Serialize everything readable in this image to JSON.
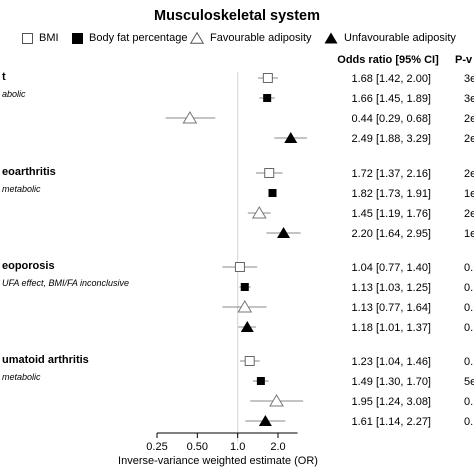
{
  "chart_data": {
    "type": "forest",
    "title": "Musculoskeletal system",
    "legend": [
      "BMI",
      "Body fat percentage",
      "Favourable adiposity",
      "Unfavourable adiposity"
    ],
    "legend_placement": "top",
    "columns": {
      "or_header": "Odds ratio [95% CI]",
      "p_header": "P-v"
    },
    "xlabel": "Inverse-variance weighted estimate (OR)",
    "xscale": "log",
    "xticks": [
      "0.25",
      "0.50",
      "1.0",
      "2.0"
    ],
    "xtick_values": [
      0.25,
      0.5,
      1.0,
      2.0
    ],
    "xlim": [
      0.25,
      2.8
    ],
    "reference_line": 1.0,
    "groups": [
      {
        "label": "t",
        "note": "abolic",
        "rows": [
          {
            "series": "BMI",
            "or": 1.68,
            "lo": 1.42,
            "hi": 2.0,
            "text": "1.68 [1.42, 2.00]",
            "p": "3e"
          },
          {
            "series": "Body fat percentage",
            "or": 1.66,
            "lo": 1.45,
            "hi": 1.89,
            "text": "1.66 [1.45, 1.89]",
            "p": "3e"
          },
          {
            "series": "Favourable adiposity",
            "or": 0.44,
            "lo": 0.29,
            "hi": 0.68,
            "text": "0.44 [0.29, 0.68]",
            "p": "2e"
          },
          {
            "series": "Unfavourable adiposity",
            "or": 2.49,
            "lo": 1.88,
            "hi": 3.29,
            "text": "2.49 [1.88, 3.29]",
            "p": "2e"
          }
        ]
      },
      {
        "label": "eoarthritis",
        "note": "metabolic",
        "rows": [
          {
            "series": "BMI",
            "or": 1.72,
            "lo": 1.37,
            "hi": 2.16,
            "text": "1.72 [1.37, 2.16]",
            "p": "2e"
          },
          {
            "series": "Body fat percentage",
            "or": 1.82,
            "lo": 1.73,
            "hi": 1.91,
            "text": "1.82 [1.73, 1.91]",
            "p": "1e-"
          },
          {
            "series": "Favourable adiposity",
            "or": 1.45,
            "lo": 1.19,
            "hi": 1.76,
            "text": "1.45 [1.19, 1.76]",
            "p": "2e"
          },
          {
            "series": "Unfavourable adiposity",
            "or": 2.2,
            "lo": 1.64,
            "hi": 2.95,
            "text": "2.20 [1.64, 2.95]",
            "p": "1e"
          }
        ]
      },
      {
        "label": "eoporosis",
        "note": "UFA effect, BMI/FA inconclusive",
        "rows": [
          {
            "series": "BMI",
            "or": 1.04,
            "lo": 0.77,
            "hi": 1.4,
            "text": "1.04 [0.77, 1.40]",
            "p": "0."
          },
          {
            "series": "Body fat percentage",
            "or": 1.13,
            "lo": 1.03,
            "hi": 1.25,
            "text": "1.13 [1.03, 1.25]",
            "p": "0."
          },
          {
            "series": "Favourable adiposity",
            "or": 1.13,
            "lo": 0.77,
            "hi": 1.64,
            "text": "1.13 [0.77, 1.64]",
            "p": "0."
          },
          {
            "series": "Unfavourable adiposity",
            "or": 1.18,
            "lo": 1.01,
            "hi": 1.37,
            "text": "1.18 [1.01, 1.37]",
            "p": "0."
          }
        ]
      },
      {
        "label": "umatoid arthritis",
        "note": "metabolic",
        "rows": [
          {
            "series": "BMI",
            "or": 1.23,
            "lo": 1.04,
            "hi": 1.46,
            "text": "1.23 [1.04, 1.46]",
            "p": "0."
          },
          {
            "series": "Body fat percentage",
            "or": 1.49,
            "lo": 1.3,
            "hi": 1.7,
            "text": "1.49 [1.30, 1.70]",
            "p": "5e"
          },
          {
            "series": "Favourable adiposity",
            "or": 1.95,
            "lo": 1.24,
            "hi": 3.08,
            "text": "1.95 [1.24, 3.08]",
            "p": "0."
          },
          {
            "series": "Unfavourable adiposity",
            "or": 1.61,
            "lo": 1.14,
            "hi": 2.27,
            "text": "1.61 [1.14, 2.27]",
            "p": "0."
          }
        ]
      }
    ]
  }
}
